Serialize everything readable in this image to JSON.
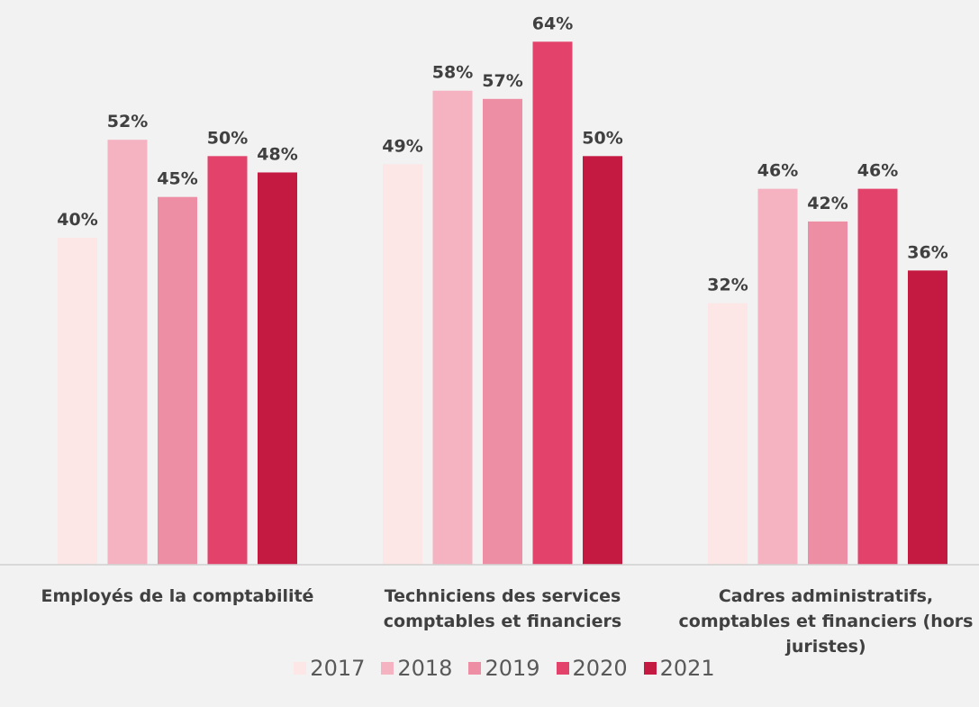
{
  "chart_data": {
    "type": "bar",
    "categories": [
      "Employés de la comptabilité",
      "Techniciens des services comptables et financiers",
      "Cadres administratifs, comptables et financiers (hors juristes)"
    ],
    "series": [
      {
        "name": "2017",
        "color": "#fde6e6",
        "values": [
          40,
          49,
          32
        ],
        "value_labels": [
          "40%",
          "49%",
          "32%"
        ]
      },
      {
        "name": "2018",
        "color": "#f5b3c2",
        "values": [
          52,
          58,
          46
        ],
        "value_labels": [
          "52%",
          "58%",
          "46%"
        ]
      },
      {
        "name": "2019",
        "color": "#ee8ea5",
        "values": [
          45,
          57,
          42
        ],
        "value_labels": [
          "45%",
          "57%",
          "42%"
        ]
      },
      {
        "name": "2020",
        "color": "#e3436b",
        "values": [
          50,
          64,
          46
        ],
        "value_labels": [
          "50%",
          "64%",
          "46%"
        ]
      },
      {
        "name": "2021",
        "color": "#c41a41",
        "values": [
          48,
          50,
          36
        ],
        "value_labels": [
          "48%",
          "50%",
          "36%"
        ]
      }
    ],
    "ylim": [
      0,
      68
    ],
    "legend": "bottom"
  }
}
